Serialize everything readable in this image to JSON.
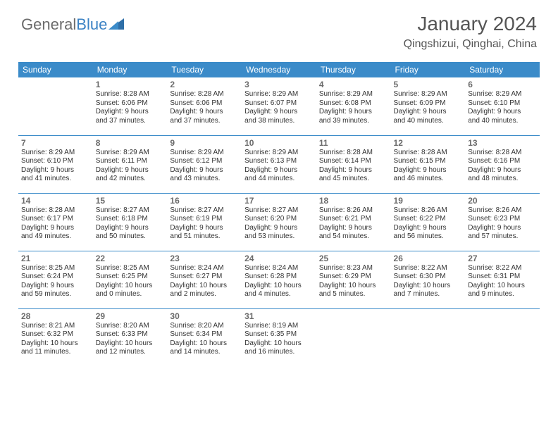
{
  "logo": {
    "part1": "General",
    "part2": "Blue"
  },
  "header": {
    "month_title": "January 2024",
    "location": "Qingshizui, Qinghai, China"
  },
  "day_headers": [
    "Sunday",
    "Monday",
    "Tuesday",
    "Wednesday",
    "Thursday",
    "Friday",
    "Saturday"
  ],
  "colors": {
    "header_bg": "#3b8bc9",
    "header_text": "#ffffff",
    "border": "#3b8bc9"
  },
  "weeks": [
    [
      null,
      {
        "n": "1",
        "sr": "Sunrise: 8:28 AM",
        "ss": "Sunset: 6:06 PM",
        "d1": "Daylight: 9 hours",
        "d2": "and 37 minutes."
      },
      {
        "n": "2",
        "sr": "Sunrise: 8:28 AM",
        "ss": "Sunset: 6:06 PM",
        "d1": "Daylight: 9 hours",
        "d2": "and 37 minutes."
      },
      {
        "n": "3",
        "sr": "Sunrise: 8:29 AM",
        "ss": "Sunset: 6:07 PM",
        "d1": "Daylight: 9 hours",
        "d2": "and 38 minutes."
      },
      {
        "n": "4",
        "sr": "Sunrise: 8:29 AM",
        "ss": "Sunset: 6:08 PM",
        "d1": "Daylight: 9 hours",
        "d2": "and 39 minutes."
      },
      {
        "n": "5",
        "sr": "Sunrise: 8:29 AM",
        "ss": "Sunset: 6:09 PM",
        "d1": "Daylight: 9 hours",
        "d2": "and 40 minutes."
      },
      {
        "n": "6",
        "sr": "Sunrise: 8:29 AM",
        "ss": "Sunset: 6:10 PM",
        "d1": "Daylight: 9 hours",
        "d2": "and 40 minutes."
      }
    ],
    [
      {
        "n": "7",
        "sr": "Sunrise: 8:29 AM",
        "ss": "Sunset: 6:10 PM",
        "d1": "Daylight: 9 hours",
        "d2": "and 41 minutes."
      },
      {
        "n": "8",
        "sr": "Sunrise: 8:29 AM",
        "ss": "Sunset: 6:11 PM",
        "d1": "Daylight: 9 hours",
        "d2": "and 42 minutes."
      },
      {
        "n": "9",
        "sr": "Sunrise: 8:29 AM",
        "ss": "Sunset: 6:12 PM",
        "d1": "Daylight: 9 hours",
        "d2": "and 43 minutes."
      },
      {
        "n": "10",
        "sr": "Sunrise: 8:29 AM",
        "ss": "Sunset: 6:13 PM",
        "d1": "Daylight: 9 hours",
        "d2": "and 44 minutes."
      },
      {
        "n": "11",
        "sr": "Sunrise: 8:28 AM",
        "ss": "Sunset: 6:14 PM",
        "d1": "Daylight: 9 hours",
        "d2": "and 45 minutes."
      },
      {
        "n": "12",
        "sr": "Sunrise: 8:28 AM",
        "ss": "Sunset: 6:15 PM",
        "d1": "Daylight: 9 hours",
        "d2": "and 46 minutes."
      },
      {
        "n": "13",
        "sr": "Sunrise: 8:28 AM",
        "ss": "Sunset: 6:16 PM",
        "d1": "Daylight: 9 hours",
        "d2": "and 48 minutes."
      }
    ],
    [
      {
        "n": "14",
        "sr": "Sunrise: 8:28 AM",
        "ss": "Sunset: 6:17 PM",
        "d1": "Daylight: 9 hours",
        "d2": "and 49 minutes."
      },
      {
        "n": "15",
        "sr": "Sunrise: 8:27 AM",
        "ss": "Sunset: 6:18 PM",
        "d1": "Daylight: 9 hours",
        "d2": "and 50 minutes."
      },
      {
        "n": "16",
        "sr": "Sunrise: 8:27 AM",
        "ss": "Sunset: 6:19 PM",
        "d1": "Daylight: 9 hours",
        "d2": "and 51 minutes."
      },
      {
        "n": "17",
        "sr": "Sunrise: 8:27 AM",
        "ss": "Sunset: 6:20 PM",
        "d1": "Daylight: 9 hours",
        "d2": "and 53 minutes."
      },
      {
        "n": "18",
        "sr": "Sunrise: 8:26 AM",
        "ss": "Sunset: 6:21 PM",
        "d1": "Daylight: 9 hours",
        "d2": "and 54 minutes."
      },
      {
        "n": "19",
        "sr": "Sunrise: 8:26 AM",
        "ss": "Sunset: 6:22 PM",
        "d1": "Daylight: 9 hours",
        "d2": "and 56 minutes."
      },
      {
        "n": "20",
        "sr": "Sunrise: 8:26 AM",
        "ss": "Sunset: 6:23 PM",
        "d1": "Daylight: 9 hours",
        "d2": "and 57 minutes."
      }
    ],
    [
      {
        "n": "21",
        "sr": "Sunrise: 8:25 AM",
        "ss": "Sunset: 6:24 PM",
        "d1": "Daylight: 9 hours",
        "d2": "and 59 minutes."
      },
      {
        "n": "22",
        "sr": "Sunrise: 8:25 AM",
        "ss": "Sunset: 6:25 PM",
        "d1": "Daylight: 10 hours",
        "d2": "and 0 minutes."
      },
      {
        "n": "23",
        "sr": "Sunrise: 8:24 AM",
        "ss": "Sunset: 6:27 PM",
        "d1": "Daylight: 10 hours",
        "d2": "and 2 minutes."
      },
      {
        "n": "24",
        "sr": "Sunrise: 8:24 AM",
        "ss": "Sunset: 6:28 PM",
        "d1": "Daylight: 10 hours",
        "d2": "and 4 minutes."
      },
      {
        "n": "25",
        "sr": "Sunrise: 8:23 AM",
        "ss": "Sunset: 6:29 PM",
        "d1": "Daylight: 10 hours",
        "d2": "and 5 minutes."
      },
      {
        "n": "26",
        "sr": "Sunrise: 8:22 AM",
        "ss": "Sunset: 6:30 PM",
        "d1": "Daylight: 10 hours",
        "d2": "and 7 minutes."
      },
      {
        "n": "27",
        "sr": "Sunrise: 8:22 AM",
        "ss": "Sunset: 6:31 PM",
        "d1": "Daylight: 10 hours",
        "d2": "and 9 minutes."
      }
    ],
    [
      {
        "n": "28",
        "sr": "Sunrise: 8:21 AM",
        "ss": "Sunset: 6:32 PM",
        "d1": "Daylight: 10 hours",
        "d2": "and 11 minutes."
      },
      {
        "n": "29",
        "sr": "Sunrise: 8:20 AM",
        "ss": "Sunset: 6:33 PM",
        "d1": "Daylight: 10 hours",
        "d2": "and 12 minutes."
      },
      {
        "n": "30",
        "sr": "Sunrise: 8:20 AM",
        "ss": "Sunset: 6:34 PM",
        "d1": "Daylight: 10 hours",
        "d2": "and 14 minutes."
      },
      {
        "n": "31",
        "sr": "Sunrise: 8:19 AM",
        "ss": "Sunset: 6:35 PM",
        "d1": "Daylight: 10 hours",
        "d2": "and 16 minutes."
      },
      null,
      null,
      null
    ]
  ]
}
